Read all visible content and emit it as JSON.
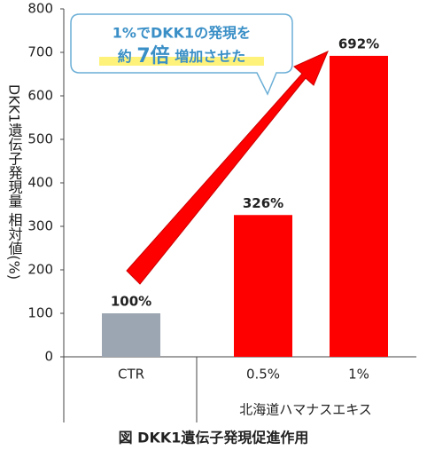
{
  "chart_data": {
    "type": "bar",
    "y_label": "DKK1遺伝子発現量 相対値(%)",
    "categories": [
      "CTR",
      "0.5%",
      "1%"
    ],
    "group_label": "北海道ハマナスエキス",
    "values": [
      100,
      326,
      692
    ],
    "value_labels": [
      "100%",
      "326%",
      "692%"
    ],
    "colors": [
      "#9ba6b2",
      "#ff0000",
      "#ff0000"
    ],
    "ylim": [
      0,
      800
    ],
    "yticks": [
      0,
      100,
      200,
      300,
      400,
      500,
      600,
      700,
      800
    ],
    "callout": {
      "line1": "1%でDKK1の発現を",
      "line2": [
        "約",
        "7倍",
        "増加させた"
      ]
    },
    "caption": "図 DKK1遺伝子発現促進作用"
  }
}
